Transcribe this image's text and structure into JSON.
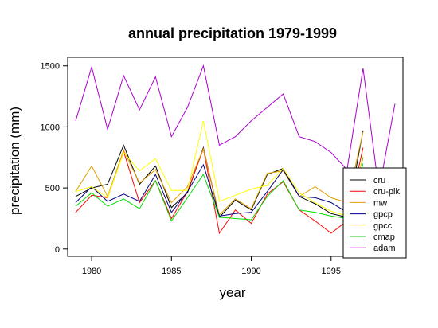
{
  "chart_data": {
    "type": "line",
    "title": "annual precipitation 1979-1999",
    "xlabel": "year",
    "ylabel": "precipitation (mm)",
    "xlim": [
      1978.5,
      1999.5
    ],
    "ylim": [
      -60,
      1570
    ],
    "xticks": [
      1980,
      1985,
      1990,
      1995
    ],
    "yticks": [
      0,
      500,
      1000,
      1500
    ],
    "legend_position": "bottom-right",
    "x": [
      1979,
      1980,
      1981,
      1982,
      1983,
      1984,
      1985,
      1986,
      1987,
      1988,
      1989,
      1990,
      1991,
      1992,
      1993,
      1994,
      1995,
      1996,
      1997,
      1998,
      1999
    ],
    "series": [
      {
        "name": "cru",
        "color": "#000000",
        "values": [
          430,
          500,
          530,
          850,
          530,
          680,
          340,
          460,
          830,
          260,
          400,
          320,
          610,
          660,
          430,
          370,
          290,
          260,
          970,
          null,
          null
        ]
      },
      {
        "name": "cru-pik",
        "color": "#ff0000",
        "values": [
          300,
          440,
          420,
          800,
          380,
          560,
          250,
          470,
          820,
          130,
          320,
          210,
          450,
          550,
          320,
          230,
          130,
          230,
          830,
          null,
          null
        ]
      },
      {
        "name": "mw",
        "color": "#e0a000",
        "values": [
          470,
          680,
          430,
          810,
          540,
          650,
          380,
          510,
          820,
          280,
          410,
          330,
          620,
          640,
          430,
          510,
          420,
          380,
          960,
          null,
          null
        ]
      },
      {
        "name": "gpcp",
        "color": "#000080",
        "values": [
          380,
          510,
          390,
          450,
          390,
          610,
          300,
          470,
          690,
          270,
          290,
          300,
          470,
          650,
          430,
          420,
          380,
          300,
          750,
          null,
          null
        ]
      },
      {
        "name": "gpcc",
        "color": "#ffff00",
        "values": [
          470,
          510,
          420,
          790,
          640,
          740,
          480,
          480,
          1050,
          390,
          440,
          490,
          520,
          660,
          460,
          380,
          310,
          270,
          760,
          null,
          null
        ]
      },
      {
        "name": "cmap",
        "color": "#00dd00",
        "values": [
          350,
          460,
          350,
          410,
          330,
          560,
          230,
          420,
          610,
          260,
          250,
          240,
          430,
          560,
          320,
          300,
          270,
          250,
          700,
          null,
          null
        ]
      },
      {
        "name": "adam",
        "color": "#aa00cc",
        "values": [
          1050,
          1490,
          980,
          1420,
          1140,
          1410,
          920,
          1160,
          1500,
          850,
          920,
          1050,
          1160,
          1270,
          920,
          880,
          790,
          650,
          1480,
          480,
          1190
        ]
      }
    ]
  }
}
